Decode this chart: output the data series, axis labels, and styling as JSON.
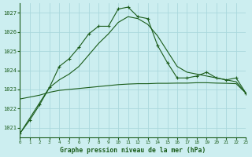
{
  "title": "Graphe pression niveau de la mer (hPa)",
  "background_color": "#cceef0",
  "grid_color": "#aad8dc",
  "line_color": "#1a5c1a",
  "xlim": [
    0,
    23
  ],
  "ylim": [
    1020.5,
    1027.5
  ],
  "yticks": [
    1021,
    1022,
    1023,
    1024,
    1025,
    1026,
    1027
  ],
  "xticks": [
    0,
    1,
    2,
    3,
    4,
    5,
    6,
    7,
    8,
    9,
    10,
    11,
    12,
    13,
    14,
    15,
    16,
    17,
    18,
    19,
    20,
    21,
    22,
    23
  ],
  "series1_x": [
    0,
    1,
    2,
    3,
    4,
    5,
    6,
    7,
    8,
    9,
    10,
    11,
    12,
    13,
    14,
    15,
    16,
    17,
    18,
    19,
    20,
    21,
    22,
    23
  ],
  "series1_y": [
    1020.7,
    1021.4,
    1022.2,
    1023.1,
    1024.2,
    1024.6,
    1025.2,
    1025.9,
    1026.3,
    1026.3,
    1027.2,
    1027.3,
    1026.8,
    1026.7,
    1025.3,
    1024.4,
    1023.6,
    1023.6,
    1023.7,
    1023.9,
    1023.6,
    1023.5,
    1023.6,
    1022.8
  ],
  "series2_x": [
    0,
    1,
    2,
    3,
    4,
    5,
    6,
    7,
    8,
    9,
    10,
    11,
    12,
    13,
    14,
    15,
    16,
    17,
    18,
    19,
    20,
    21,
    22,
    23
  ],
  "series2_y": [
    1020.7,
    1021.5,
    1022.3,
    1023.1,
    1023.5,
    1023.8,
    1024.2,
    1024.8,
    1025.4,
    1025.9,
    1026.5,
    1026.8,
    1026.7,
    1026.4,
    1025.8,
    1025.0,
    1024.2,
    1023.9,
    1023.8,
    1023.7,
    1023.6,
    1023.5,
    1023.4,
    1022.8
  ],
  "series3_x": [
    0,
    1,
    2,
    3,
    4,
    5,
    6,
    7,
    8,
    9,
    10,
    11,
    12,
    13,
    14,
    15,
    16,
    17,
    18,
    19,
    20,
    21,
    22,
    23
  ],
  "series3_y": [
    1022.5,
    1022.6,
    1022.7,
    1022.85,
    1022.95,
    1023.0,
    1023.05,
    1023.1,
    1023.15,
    1023.2,
    1023.25,
    1023.28,
    1023.3,
    1023.3,
    1023.32,
    1023.32,
    1023.33,
    1023.33,
    1023.35,
    1023.35,
    1023.33,
    1023.32,
    1023.3,
    1022.8
  ]
}
